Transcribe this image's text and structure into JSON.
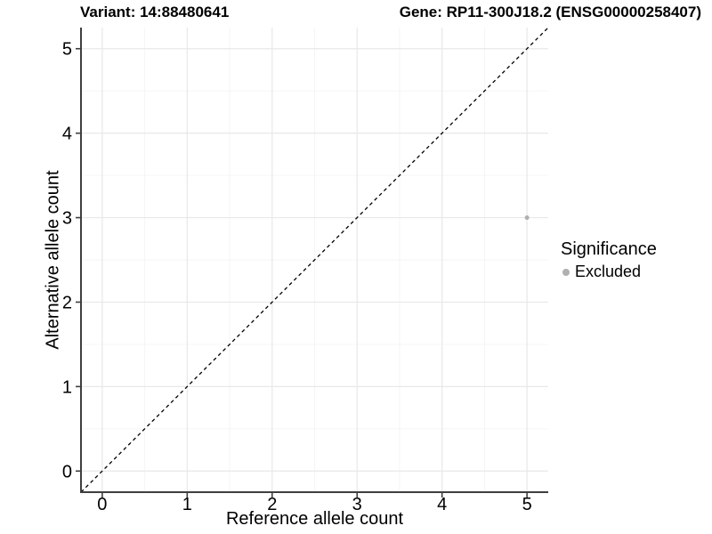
{
  "chart_data": {
    "type": "scatter",
    "title_left": "Variant: 14:88480641",
    "title_right": "Gene: RP11-300J18.2 (ENSG00000258407)",
    "xlabel": "Reference allele count",
    "ylabel": "Alternative allele count",
    "xlim": [
      -0.25,
      5.25
    ],
    "ylim": [
      -0.25,
      5.25
    ],
    "xticks": [
      0,
      1,
      2,
      3,
      4,
      5
    ],
    "yticks": [
      0,
      1,
      2,
      3,
      4,
      5
    ],
    "minor_gridlines_x": [
      0.5,
      1.5,
      2.5,
      3.5,
      4.5
    ],
    "minor_gridlines_y": [
      0.5,
      1.5,
      2.5,
      3.5,
      4.5
    ],
    "grid": true,
    "identity_line": {
      "style": "dashed",
      "color": "#000000",
      "from": [
        -0.25,
        -0.25
      ],
      "to": [
        5.25,
        5.25
      ]
    },
    "points": [
      {
        "x": 5,
        "y": 3,
        "series": "Excluded",
        "color": "#b0b0b0"
      }
    ],
    "legend": {
      "title": "Significance",
      "position": "right",
      "items": [
        {
          "label": "Excluded",
          "color": "#b0b0b0"
        }
      ]
    },
    "colors": {
      "background": "#ffffff",
      "grid_major": "#e8e8e8",
      "grid_minor": "#f4f4f4",
      "axis_line": "#3f3f3f",
      "tick_label": "#000000",
      "point": "#b0b0b0"
    }
  }
}
